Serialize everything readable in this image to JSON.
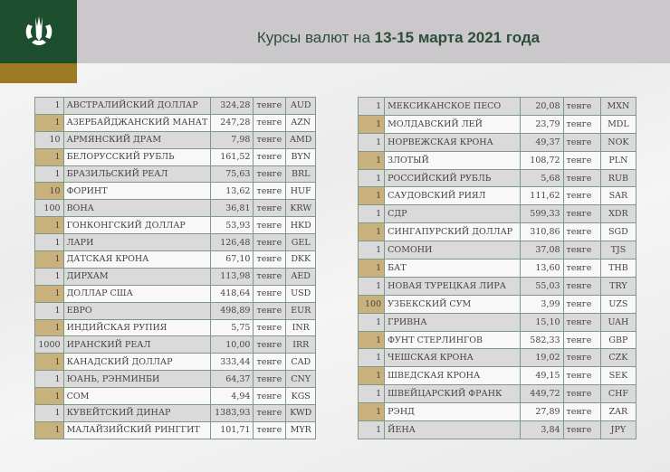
{
  "header": {
    "title_prefix": "Курсы валют на ",
    "title_bold": "13-15 марта 2021 года",
    "colors": {
      "green": "#1d4e2e",
      "gold": "#9c7a24",
      "band": "#cbc8cc"
    }
  },
  "unit_label": "тенге",
  "left_table": [
    [
      "1",
      "АВСТРАЛИЙСКИЙ ДОЛЛАР",
      "324,28",
      "AUD"
    ],
    [
      "1",
      "АЗЕРБАЙДЖАНСКИЙ МАНАТ",
      "247,28",
      "AZN"
    ],
    [
      "10",
      "АРМЯНСКИЙ  ДРАМ",
      "7,98",
      "AMD"
    ],
    [
      "1",
      "БЕЛОРУССКИЙ РУБЛЬ",
      "161,52",
      "BYN"
    ],
    [
      "1",
      "БРАЗИЛЬСКИЙ РЕАЛ",
      "75,63",
      "BRL"
    ],
    [
      "10",
      "ФОРИНТ",
      "13,62",
      "HUF"
    ],
    [
      "100",
      "ВОНА",
      "36,81",
      "KRW"
    ],
    [
      "1",
      "ГОНКОНГСКИЙ ДОЛЛАР",
      "53,93",
      "HKD"
    ],
    [
      "1",
      "ЛАРИ",
      "126,48",
      "GEL"
    ],
    [
      "1",
      "ДАТСКАЯ КРОНА",
      "67,10",
      "DKK"
    ],
    [
      "1",
      "ДИРХАМ",
      "113,98",
      "AED"
    ],
    [
      "1",
      "ДОЛЛАР США",
      "418,64",
      "USD"
    ],
    [
      "1",
      "ЕВРО",
      "498,89",
      "EUR"
    ],
    [
      "1",
      "ИНДИЙСКАЯ РУПИЯ",
      "5,75",
      "INR"
    ],
    [
      "1000",
      "ИРАНСКИЙ РЕАЛ",
      "10,00",
      "IRR"
    ],
    [
      "1",
      "КАНАДСКИЙ ДОЛЛАР",
      "333,44",
      "CAD"
    ],
    [
      "1",
      "ЮАНЬ, РЭНМИНБИ",
      "64,37",
      "CNY"
    ],
    [
      "1",
      "СОМ",
      "4,94",
      "KGS"
    ],
    [
      "1",
      "КУВЕЙТСКИЙ ДИНАР",
      "1383,93",
      "KWD"
    ],
    [
      "1",
      "МАЛАЙЗИЙСКИЙ РИНГГИТ",
      "101,71",
      "MYR"
    ]
  ],
  "right_table": [
    [
      "1",
      "МЕКСИКАНСКОЕ ПЕСО",
      "20,08",
      "MXN"
    ],
    [
      "1",
      "МОЛДАВСКИЙ ЛЕЙ",
      "23,79",
      "MDL"
    ],
    [
      "1",
      "НОРВЕЖСКАЯ КРОНА",
      "49,37",
      "NOK"
    ],
    [
      "1",
      "ЗЛОТЫЙ",
      "108,72",
      "PLN"
    ],
    [
      "1",
      "РОССИЙСКИЙ РУБЛЬ",
      "5,68",
      "RUB"
    ],
    [
      "1",
      "САУДОВСКИЙ РИЯЛ",
      "111,62",
      "SAR"
    ],
    [
      "1",
      "СДР",
      "599,33",
      "XDR"
    ],
    [
      "1",
      "СИНГАПУРСКИЙ ДОЛЛАР",
      "310,86",
      "SGD"
    ],
    [
      "1",
      "СОМОНИ",
      "37,08",
      "TJS"
    ],
    [
      "1",
      "БАТ",
      "13,60",
      "THB"
    ],
    [
      "1",
      "НОВАЯ ТУРЕЦКАЯ ЛИРА",
      "55,03",
      "TRY"
    ],
    [
      "100",
      "УЗБЕКСКИЙ СУМ",
      "3,99",
      "UZS"
    ],
    [
      "1",
      "ГРИВНА",
      "15,10",
      "UAH"
    ],
    [
      "1",
      "ФУНТ СТЕРЛИНГОВ",
      "582,33",
      "GBP"
    ],
    [
      "1",
      "ЧЕШСКАЯ КРОНА",
      "19,02",
      "CZK"
    ],
    [
      "1",
      "ШВЕДСКАЯ КРОНА",
      "49,15",
      "SEK"
    ],
    [
      "1",
      "ШВЕЙЦАРСКИЙ ФРАНК",
      "449,72",
      "CHF"
    ],
    [
      "1",
      "РЭНД",
      "27,89",
      "ZAR"
    ],
    [
      "1",
      "ЙЕНА",
      "3,84",
      "JPY"
    ]
  ]
}
